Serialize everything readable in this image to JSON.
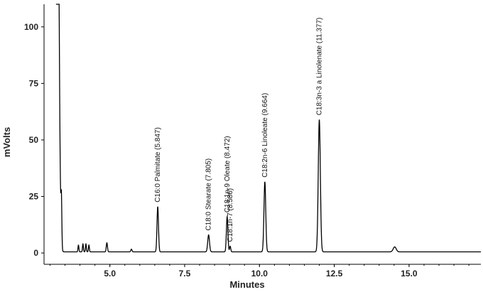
{
  "chart_data": {
    "type": "line",
    "xlabel": "Minutes",
    "ylabel": "mVolts",
    "xlim": [
      2.8,
      17.4
    ],
    "ylim": [
      -5,
      110
    ],
    "x_ticks": [
      5.0,
      7.5,
      10.0,
      12.5,
      15.0
    ],
    "x_tick_labels": [
      "5.0",
      "7.5",
      "10.0",
      "12.5",
      "15.0"
    ],
    "y_ticks": [
      0,
      25,
      50,
      75,
      100
    ],
    "y_tick_labels": [
      "0",
      "25",
      "50",
      "75",
      "100"
    ],
    "grid": false,
    "baseline": 0.5,
    "peaks": [
      {
        "x": 3.25,
        "y": 200,
        "w": 0.05,
        "label": ""
      },
      {
        "x": 3.38,
        "y": 20,
        "w": 0.015,
        "label": ""
      },
      {
        "x": 3.95,
        "y": 3.0,
        "w": 0.015,
        "label": ""
      },
      {
        "x": 4.1,
        "y": 3.5,
        "w": 0.015,
        "label": ""
      },
      {
        "x": 4.2,
        "y": 3.5,
        "w": 0.015,
        "label": ""
      },
      {
        "x": 4.3,
        "y": 3.0,
        "w": 0.015,
        "label": ""
      },
      {
        "x": 4.9,
        "y": 4.0,
        "w": 0.02,
        "label": ""
      },
      {
        "x": 5.72,
        "y": 1.2,
        "w": 0.02,
        "label": ""
      },
      {
        "x": 6.6,
        "y": 20,
        "w": 0.025,
        "label": "C16:0 Palmitate (5.847)"
      },
      {
        "x": 8.3,
        "y": 7.5,
        "w": 0.03,
        "label": "C18:0 Stearate (7.805)"
      },
      {
        "x": 8.92,
        "y": 15.5,
        "w": 0.025,
        "label": "C18:1n-9 Oleate (8.472)"
      },
      {
        "x": 9.02,
        "y": 2.5,
        "w": 0.02,
        "label": "C18:1n-7 (8.586)"
      },
      {
        "x": 10.18,
        "y": 31,
        "w": 0.03,
        "label": "C18:2n-6 Linoleate (9.664)"
      },
      {
        "x": 12.0,
        "y": 58.5,
        "w": 0.035,
        "label": "C18:3n-3 a Linolenate (11.377)"
      },
      {
        "x": 14.52,
        "y": 2.2,
        "w": 0.05,
        "label": ""
      }
    ]
  }
}
